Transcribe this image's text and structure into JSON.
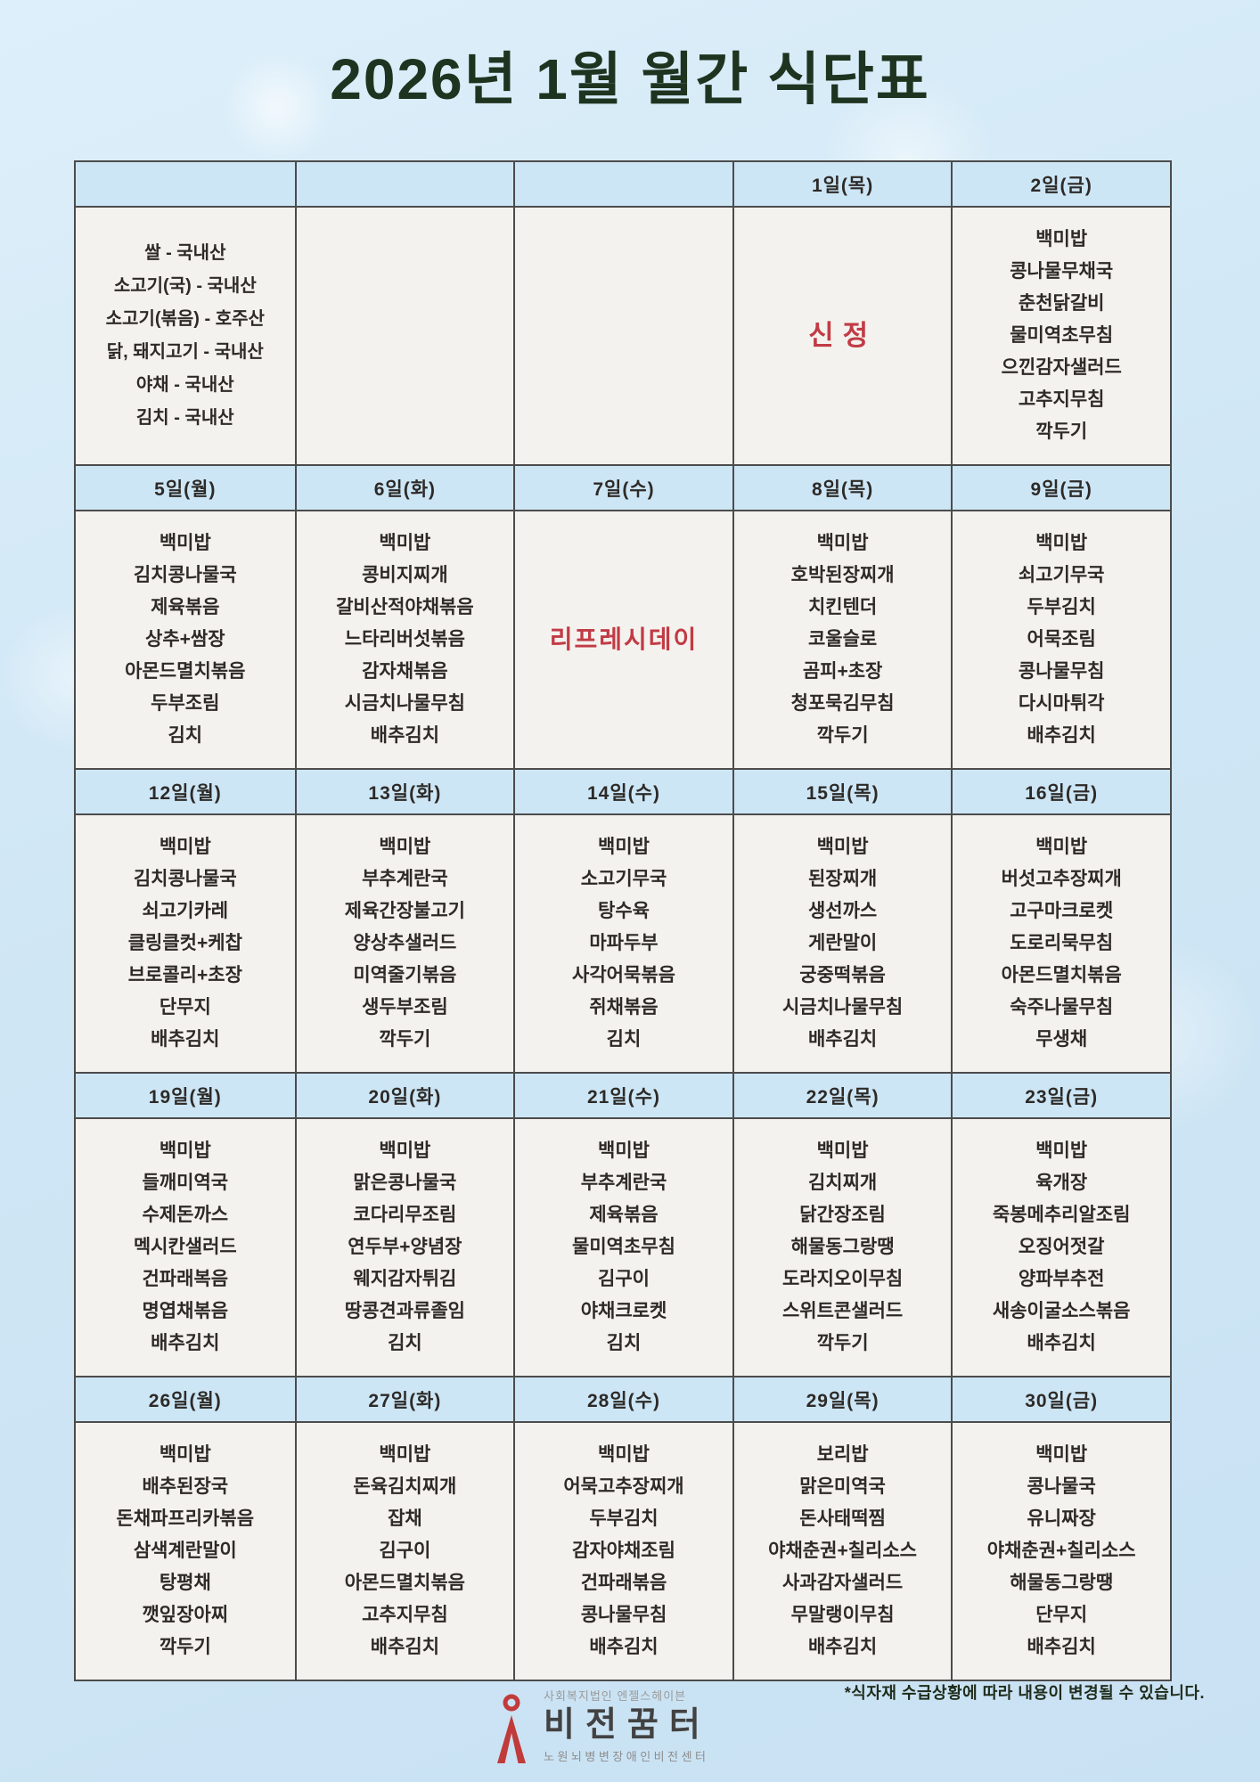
{
  "title": "2026년 1월 월간 식단표",
  "footnote": "*식자재 수급상황에 따라 내용이 변경될 수 있습니다.",
  "logo": {
    "icon": "person-icon",
    "org_small": "사회복지법인 엔젤스헤이븐",
    "org_main": "비전꿈터",
    "org_sub": "노원뇌병변장애인비전센터",
    "accent_color": "#c13b3b"
  },
  "colors": {
    "title": "#1f3420",
    "header_bg": "#cde6f6",
    "cell_bg": "#f4f2ee",
    "border": "#4c4c4c",
    "highlight_red": "#c13b45",
    "text": "#2d2a27",
    "page_bg": "#cfe6f5"
  },
  "table": {
    "weeks": [
      {
        "headers": [
          "",
          "",
          "",
          "1일(목)",
          "2일(금)"
        ],
        "cells": [
          {
            "type": "info",
            "lines": [
              "쌀 - 국내산",
              "소고기(국) - 국내산",
              "소고기(볶음) - 호주산",
              "닭, 돼지고기 - 국내산",
              "야채 - 국내산",
              "김치 - 국내산"
            ]
          },
          {
            "type": "empty",
            "lines": []
          },
          {
            "type": "empty",
            "lines": []
          },
          {
            "type": "holiday",
            "lines": [
              "신정"
            ]
          },
          {
            "type": "menu",
            "lines": [
              "백미밥",
              "콩나물무채국",
              "춘천닭갈비",
              "물미역초무침",
              "으낀감자샐러드",
              "고추지무침",
              "깍두기"
            ]
          }
        ]
      },
      {
        "headers": [
          "5일(월)",
          "6일(화)",
          "7일(수)",
          "8일(목)",
          "9일(금)"
        ],
        "cells": [
          {
            "type": "menu",
            "lines": [
              "백미밥",
              "김치콩나물국",
              "제육볶음",
              "상추+쌈장",
              "아몬드멸치볶음",
              "두부조림",
              "김치"
            ]
          },
          {
            "type": "menu",
            "lines": [
              "백미밥",
              "콩비지찌개",
              "갈비산적야채볶음",
              "느타리버섯볶음",
              "감자채볶음",
              "시금치나물무침",
              "배추김치"
            ]
          },
          {
            "type": "special",
            "lines": [
              "리프레시데이"
            ]
          },
          {
            "type": "menu",
            "lines": [
              "백미밥",
              "호박된장찌개",
              "치킨텐더",
              "코울슬로",
              "곰피+초장",
              "청포묵김무침",
              "깍두기"
            ]
          },
          {
            "type": "menu",
            "lines": [
              "백미밥",
              "쇠고기무국",
              "두부김치",
              "어묵조림",
              "콩나물무침",
              "다시마튀각",
              "배추김치"
            ]
          }
        ]
      },
      {
        "headers": [
          "12일(월)",
          "13일(화)",
          "14일(수)",
          "15일(목)",
          "16일(금)"
        ],
        "cells": [
          {
            "type": "menu",
            "lines": [
              "백미밥",
              "김치콩나물국",
              "쇠고기카레",
              "클링클컷+케찹",
              "브로콜리+초장",
              "단무지",
              "배추김치"
            ]
          },
          {
            "type": "menu",
            "lines": [
              "백미밥",
              "부추계란국",
              "제육간장불고기",
              "양상추샐러드",
              "미역줄기볶음",
              "생두부조림",
              "깍두기"
            ]
          },
          {
            "type": "menu",
            "lines": [
              "백미밥",
              "소고기무국",
              "탕수육",
              "마파두부",
              "사각어묵볶음",
              "쥐채볶음",
              "김치"
            ]
          },
          {
            "type": "menu",
            "lines": [
              "백미밥",
              "된장찌개",
              "생선까스",
              "게란말이",
              "궁중떡볶음",
              "시금치나물무침",
              "배추김치"
            ]
          },
          {
            "type": "menu",
            "lines": [
              "백미밥",
              "버섯고추장찌개",
              "고구마크로켓",
              "도로리묵무침",
              "아몬드멸치볶음",
              "숙주나물무침",
              "무생채"
            ]
          }
        ]
      },
      {
        "headers": [
          "19일(월)",
          "20일(화)",
          "21일(수)",
          "22일(목)",
          "23일(금)"
        ],
        "cells": [
          {
            "type": "menu",
            "lines": [
              "백미밥",
              "들깨미역국",
              "수제돈까스",
              "멕시칸샐러드",
              "건파래복음",
              "명엽채볶음",
              "배추김치"
            ]
          },
          {
            "type": "menu",
            "lines": [
              "백미밥",
              "맑은콩나물국",
              "코다리무조림",
              "연두부+양념장",
              "웨지감자튀김",
              "땅콩견과류졸임",
              "김치"
            ]
          },
          {
            "type": "menu",
            "lines": [
              "백미밥",
              "부추계란국",
              "제육볶음",
              "물미역초무침",
              "김구이",
              "야채크로켓",
              "김치"
            ]
          },
          {
            "type": "menu",
            "lines": [
              "백미밥",
              "김치찌개",
              "닭간장조림",
              "해물동그랑땡",
              "도라지오이무침",
              "스위트콘샐러드",
              "깍두기"
            ]
          },
          {
            "type": "menu",
            "lines": [
              "백미밥",
              "육개장",
              "죽봉메추리알조림",
              "오징어젓갈",
              "양파부추전",
              "새송이굴소스볶음",
              "배추김치"
            ]
          }
        ]
      },
      {
        "headers": [
          "26일(월)",
          "27일(화)",
          "28일(수)",
          "29일(목)",
          "30일(금)"
        ],
        "cells": [
          {
            "type": "menu",
            "lines": [
              "백미밥",
              "배추된장국",
              "돈채파프리카볶음",
              "삼색계란말이",
              "탕평채",
              "깻잎장아찌",
              "깍두기"
            ]
          },
          {
            "type": "menu",
            "lines": [
              "백미밥",
              "돈육김치찌개",
              "잡채",
              "김구이",
              "아몬드멸치볶음",
              "고추지무침",
              "배추김치"
            ]
          },
          {
            "type": "menu",
            "lines": [
              "백미밥",
              "어묵고추장찌개",
              "두부김치",
              "감자야채조림",
              "건파래볶음",
              "콩나물무침",
              "배추김치"
            ]
          },
          {
            "type": "menu",
            "lines": [
              "보리밥",
              "맑은미역국",
              "돈사태떡찜",
              "야채춘권+칠리소스",
              "사과감자샐러드",
              "무말랭이무침",
              "배추김치"
            ]
          },
          {
            "type": "menu",
            "lines": [
              "백미밥",
              "콩나물국",
              "유니짜장",
              "야채춘권+칠리소스",
              "해물동그랑땡",
              "단무지",
              "배추김치"
            ]
          }
        ]
      }
    ]
  }
}
